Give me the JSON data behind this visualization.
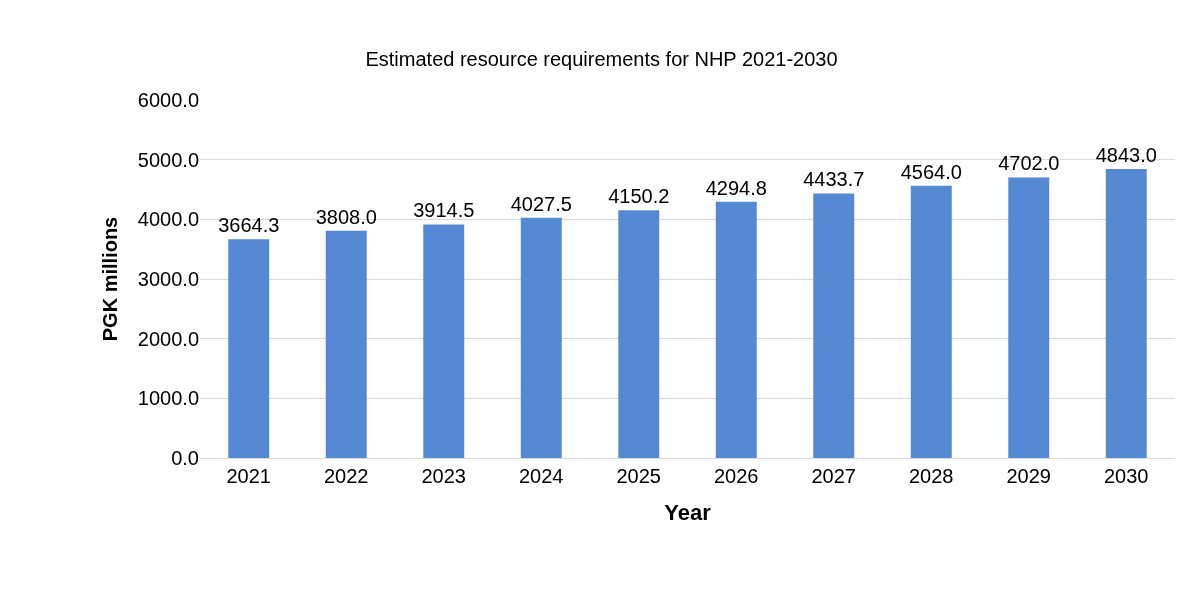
{
  "chart_data": {
    "type": "bar",
    "title": "Estimated resource requirements for NHP 2021-2030",
    "xlabel": "Year",
    "ylabel": "PGK millions",
    "categories": [
      "2021",
      "2022",
      "2023",
      "2024",
      "2025",
      "2026",
      "2027",
      "2028",
      "2029",
      "2030"
    ],
    "values": [
      3664.3,
      3808.0,
      3914.5,
      4027.5,
      4150.2,
      4294.8,
      4433.7,
      4564.0,
      4702.0,
      4843.0
    ],
    "value_labels": [
      "3664.3",
      "3808.0",
      "3914.5",
      "4027.5",
      "4150.2",
      "4294.8",
      "4433.7",
      "4564.0",
      "4702.0",
      "4843.0"
    ],
    "color": "#5589d3",
    "ylim": [
      0,
      6000
    ],
    "yticks": [
      {
        "value": 0,
        "label": "0.0"
      },
      {
        "value": 1000,
        "label": "1000.0"
      },
      {
        "value": 2000,
        "label": "2000.0"
      },
      {
        "value": 3000,
        "label": "3000.0"
      },
      {
        "value": 4000,
        "label": "4000.0"
      },
      {
        "value": 5000,
        "label": "5000.0"
      },
      {
        "value": 6000,
        "label": "6000.0"
      }
    ],
    "grid": "y"
  }
}
